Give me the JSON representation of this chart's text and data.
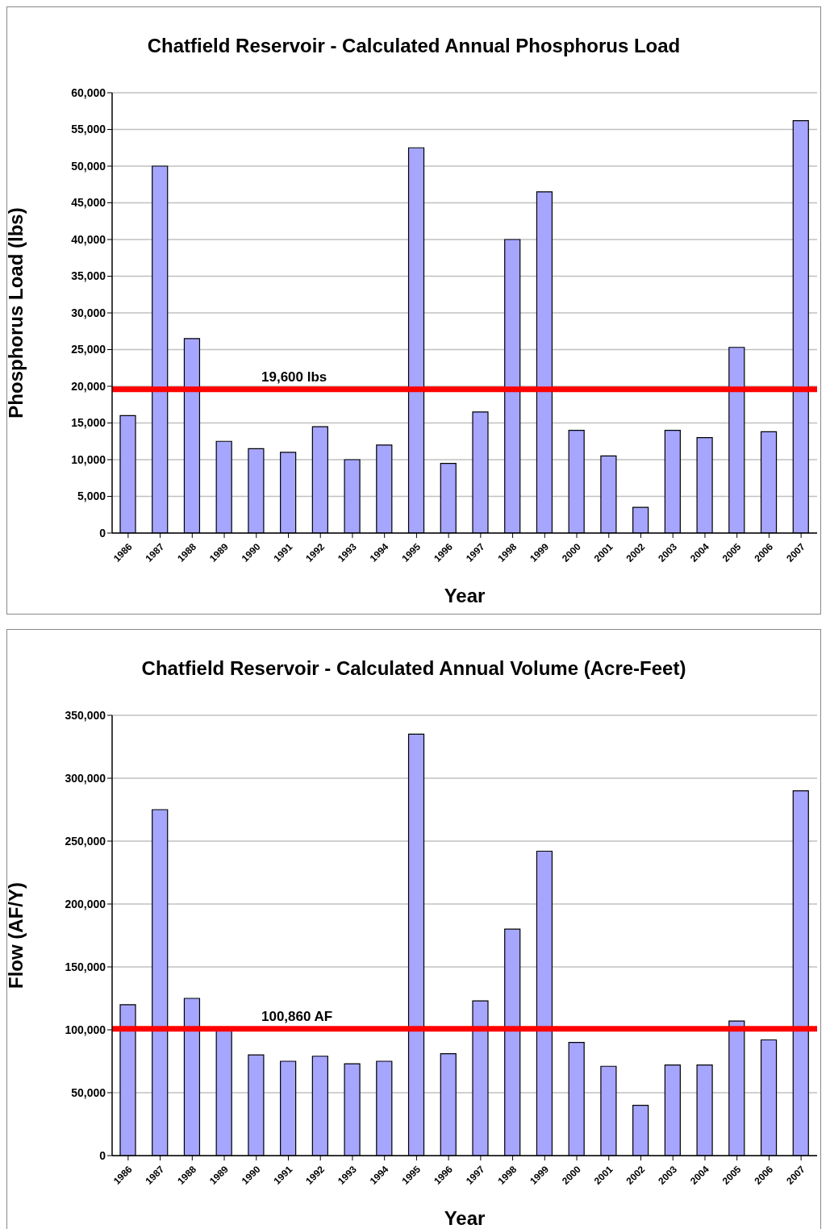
{
  "chart_data": [
    {
      "type": "bar",
      "title": "Chatfield Reservoir - Calculated Annual Phosphorus Load",
      "xlabel": "Year",
      "ylabel": "Phosphorus Load (lbs)",
      "categories": [
        "1986",
        "1987",
        "1988",
        "1989",
        "1990",
        "1991",
        "1992",
        "1993",
        "1994",
        "1995",
        "1996",
        "1997",
        "1998",
        "1999",
        "2000",
        "2001",
        "2002",
        "2003",
        "2004",
        "2005",
        "2006",
        "2007"
      ],
      "values": [
        16000,
        50000,
        26500,
        12500,
        11500,
        11000,
        14500,
        10000,
        12000,
        52500,
        9500,
        16500,
        40000,
        46500,
        14000,
        10500,
        3500,
        14000,
        13000,
        25300,
        13800,
        56200
      ],
      "color": "#a6a6ff",
      "ylim": [
        0,
        60000
      ],
      "yticks": [
        0,
        {
          "value": 5000,
          "label": "5,000"
        },
        {
          "value": 10000,
          "label": "10,000"
        },
        {
          "value": 15000,
          "label": "15,000"
        },
        {
          "value": 20000,
          "label": "20,000"
        },
        {
          "value": 25000,
          "label": "25,000"
        },
        {
          "value": 30000,
          "label": "30,000"
        },
        {
          "value": 35000,
          "label": "35,000"
        },
        {
          "value": 40000,
          "label": "40,000"
        },
        {
          "value": 45000,
          "label": "45,000"
        },
        {
          "value": 50000,
          "label": "50,000"
        },
        {
          "value": 55000,
          "label": "55,000"
        },
        {
          "value": 60000,
          "label": "60,000"
        }
      ],
      "grid": "y",
      "ref_lines": [
        {
          "axis": "y",
          "value": 19600,
          "label": "19,600 lbs",
          "color": "#ff0000"
        }
      ]
    },
    {
      "type": "bar",
      "title": "Chatfield Reservoir - Calculated Annual Volume (Acre-Feet)",
      "xlabel": "Year",
      "ylabel": "Flow (AF/Y)",
      "categories": [
        "1986",
        "1987",
        "1988",
        "1989",
        "1990",
        "1991",
        "1992",
        "1993",
        "1994",
        "1995",
        "1996",
        "1997",
        "1998",
        "1999",
        "2000",
        "2001",
        "2002",
        "2003",
        "2004",
        "2005",
        "2006",
        "2007"
      ],
      "values": [
        120000,
        275000,
        125000,
        100000,
        80000,
        75000,
        79000,
        73000,
        75000,
        335000,
        81000,
        123000,
        180000,
        242000,
        90000,
        71000,
        40000,
        72000,
        72000,
        107000,
        92000,
        290000
      ],
      "color": "#a6a6ff",
      "ylim": [
        0,
        350000
      ],
      "yticks": [
        0,
        {
          "value": 50000,
          "label": "50,000"
        },
        {
          "value": 100000,
          "label": "100,000"
        },
        {
          "value": 150000,
          "label": "150,000"
        },
        {
          "value": 200000,
          "label": "200,000"
        },
        {
          "value": 250000,
          "label": "250,000"
        },
        {
          "value": 300000,
          "label": "300,000"
        },
        {
          "value": 350000,
          "label": "350,000"
        }
      ],
      "grid": "y",
      "ref_lines": [
        {
          "axis": "y",
          "value": 100860,
          "label": "100,860 AF",
          "color": "#ff0000"
        }
      ]
    }
  ]
}
